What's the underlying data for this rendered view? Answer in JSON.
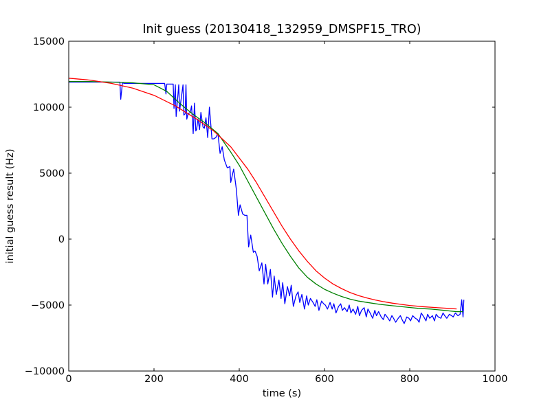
{
  "chart_data": {
    "type": "line",
    "title": "Init guess (20130418_132959_DMSPF15_TRO)",
    "xlabel": "time (s)",
    "ylabel": "initial guess result (Hz)",
    "xlim": [
      0,
      1000
    ],
    "ylim": [
      -10000,
      15000
    ],
    "xticks": [
      0,
      200,
      400,
      600,
      800,
      1000
    ],
    "yticks": [
      -10000,
      -5000,
      0,
      5000,
      10000,
      15000
    ],
    "xtick_labels": [
      "0",
      "200",
      "400",
      "600",
      "800",
      "1000"
    ],
    "ytick_labels": [
      "−10000",
      "−5000",
      "0",
      "5000",
      "10000",
      "15000"
    ],
    "grid": false,
    "legend": "none",
    "series": [
      {
        "color": "#0000ff",
        "x": [
          0,
          120,
          122,
          126,
          130,
          200,
          223,
          225,
          228,
          230,
          245,
          247,
          250,
          252,
          258,
          260,
          268,
          270,
          273,
          275,
          277,
          280,
          285,
          288,
          292,
          295,
          298,
          300,
          303,
          307,
          310,
          315,
          318,
          322,
          326,
          330,
          336,
          340,
          345,
          350,
          355,
          360,
          365,
          372,
          378,
          380,
          387,
          393,
          398,
          402,
          408,
          413,
          418,
          422,
          427,
          433,
          437,
          442,
          447,
          453,
          458,
          462,
          467,
          473,
          478,
          482,
          487,
          493,
          498,
          502,
          507,
          513,
          518,
          522,
          527,
          533,
          538,
          542,
          547,
          553,
          558,
          562,
          567,
          573,
          578,
          582,
          587,
          593,
          598,
          602,
          607,
          613,
          618,
          622,
          627,
          633,
          638,
          642,
          647,
          653,
          658,
          662,
          667,
          673,
          678,
          682,
          687,
          693,
          698,
          702,
          707,
          713,
          718,
          722,
          727,
          733,
          738,
          742,
          747,
          753,
          758,
          762,
          767,
          773,
          778,
          782,
          787,
          793,
          798,
          802,
          807,
          813,
          818,
          822,
          827,
          833,
          838,
          842,
          847,
          853,
          858,
          862,
          867,
          873,
          878,
          882,
          887,
          893,
          898,
          902,
          907,
          913,
          918,
          922,
          925,
          927
        ],
        "y": [
          11900,
          11900,
          10600,
          11850,
          11800,
          11800,
          11800,
          11800,
          11000,
          11750,
          11750,
          9900,
          11700,
          9300,
          11700,
          9700,
          11700,
          9400,
          9500,
          11700,
          9100,
          9500,
          9600,
          10100,
          8000,
          10300,
          8200,
          8300,
          9100,
          8300,
          9600,
          8500,
          8400,
          9200,
          7700,
          10000,
          7600,
          7600,
          7700,
          8000,
          6500,
          7000,
          6000,
          5400,
          5500,
          4300,
          5300,
          3800,
          1800,
          2600,
          1900,
          1800,
          1800,
          -600,
          300,
          -1000,
          -900,
          -1300,
          -2400,
          -1800,
          -3400,
          -1900,
          -3400,
          -2300,
          -4400,
          -2800,
          -4200,
          -3100,
          -4500,
          -3300,
          -4900,
          -3600,
          -4300,
          -3500,
          -5100,
          -4300,
          -4000,
          -4800,
          -4200,
          -5300,
          -4300,
          -5000,
          -4500,
          -4800,
          -5100,
          -4600,
          -5400,
          -4700,
          -4900,
          -5000,
          -5300,
          -4800,
          -5300,
          -4900,
          -5600,
          -5100,
          -4900,
          -5400,
          -5200,
          -5500,
          -5000,
          -5600,
          -5300,
          -5700,
          -5100,
          -5800,
          -5400,
          -5200,
          -5900,
          -5300,
          -5600,
          -6000,
          -5400,
          -5800,
          -5500,
          -5900,
          -6100,
          -5700,
          -5900,
          -6200,
          -5800,
          -6000,
          -6300,
          -6000,
          -5800,
          -6100,
          -6400,
          -5900,
          -6000,
          -6200,
          -5800,
          -6000,
          -6100,
          -6300,
          -5600,
          -5900,
          -6200,
          -5700,
          -6000,
          -5800,
          -6200,
          -5700,
          -5900,
          -6000,
          -5600,
          -5800,
          -6000,
          -5700,
          -5800,
          -5900,
          -5600,
          -5800,
          -5700,
          -4600,
          -5900,
          -4600
        ]
      },
      {
        "color": "#008000",
        "x": [
          0,
          50,
          100,
          150,
          200,
          230,
          260,
          290,
          320,
          350,
          380,
          400,
          420,
          440,
          460,
          480,
          500,
          520,
          540,
          560,
          580,
          600,
          620,
          640,
          660,
          680,
          700,
          730,
          760,
          790,
          820,
          850,
          880,
          910,
          925
        ],
        "y": [
          11950,
          11950,
          11900,
          11850,
          11700,
          11200,
          10300,
          9500,
          8800,
          8000,
          6600,
          5600,
          4400,
          3200,
          2000,
          800,
          -300,
          -1300,
          -2200,
          -2900,
          -3400,
          -3800,
          -4100,
          -4350,
          -4550,
          -4700,
          -4800,
          -4950,
          -5050,
          -5150,
          -5250,
          -5300,
          -5400,
          -5500,
          -5500
        ]
      },
      {
        "color": "#ff0000",
        "x": [
          0,
          50,
          100,
          150,
          200,
          250,
          300,
          340,
          380,
          420,
          440,
          460,
          480,
          500,
          520,
          540,
          560,
          580,
          600,
          620,
          640,
          660,
          680,
          700,
          720,
          740,
          760,
          780,
          800,
          830,
          860,
          890,
          910
        ],
        "y": [
          12200,
          12050,
          11800,
          11450,
          10900,
          10100,
          9100,
          8200,
          7000,
          5300,
          4300,
          3200,
          2100,
          1000,
          0,
          -900,
          -1700,
          -2400,
          -2950,
          -3400,
          -3750,
          -4050,
          -4280,
          -4470,
          -4620,
          -4750,
          -4860,
          -4950,
          -5030,
          -5120,
          -5190,
          -5250,
          -5290
        ]
      }
    ]
  }
}
